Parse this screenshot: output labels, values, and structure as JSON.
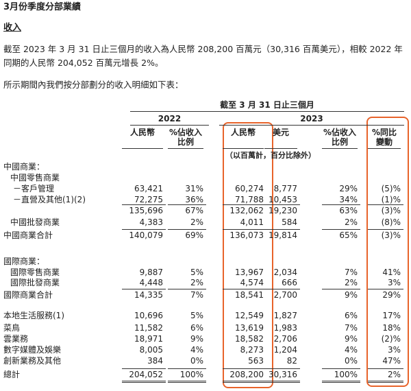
{
  "title": "3月份季度分部業績",
  "section": "收入",
  "paragraphs": [
    "截至 2023 年 3 月 31 日止三個月的收入為人民幣 208,200 百萬元（30,316 百萬美元），相較 2022 年同期的人民幣 204,052 百萬元增長 2%。",
    "所示期間內我們按分部劃分的收入明細如下表："
  ],
  "table": {
    "header": {
      "title": "截至 3 月 31 日止三個月",
      "years": [
        "2022",
        "2023"
      ],
      "columns": [
        "人民幣",
        "%佔收入比例",
        "人民幣",
        "美元",
        "%佔收入比例",
        "%同比變動"
      ],
      "unit_note": "（以百萬計，百分比除外）"
    },
    "rows": [
      {
        "label": "中國商業："
      },
      {
        "label": "中國零售商業"
      },
      {
        "label": "－客戶管理",
        "cells": [
          "63,421",
          "31%",
          "60,274",
          "8,777",
          "29%",
          "(5)%"
        ]
      },
      {
        "label": "－直營及其他(1)(2)",
        "cells": [
          "72,275",
          "36%",
          "71,788",
          "10,453",
          "34%",
          "(1)%"
        ]
      },
      {
        "cells": [
          "135,696",
          "67%",
          "132,062",
          "19,230",
          "63%",
          "(3)%"
        ]
      },
      {
        "label": "中國批發商業",
        "cells": [
          "4,383",
          "2%",
          "4,011",
          "584",
          "2%",
          "(8)%"
        ]
      },
      {
        "label": "中國商業合計",
        "cells": [
          "140,079",
          "69%",
          "136,073",
          "19,814",
          "65%",
          "(3)%"
        ]
      },
      {
        "label": "國際商業："
      },
      {
        "label": "國際零售商業",
        "cells": [
          "9,887",
          "5%",
          "13,967",
          "2,034",
          "7%",
          "41%"
        ]
      },
      {
        "label": "國際批發商業",
        "cells": [
          "4,448",
          "2%",
          "4,574",
          "666",
          "2%",
          "3%"
        ]
      },
      {
        "label": "國際商業合計",
        "cells": [
          "14,335",
          "7%",
          "18,541",
          "2,700",
          "9%",
          "29%"
        ]
      },
      {
        "label": "本地生活服務(1)",
        "cells": [
          "10,696",
          "5%",
          "12,549",
          "1,827",
          "6%",
          "17%"
        ]
      },
      {
        "label": "菜鳥",
        "cells": [
          "11,582",
          "6%",
          "13,619",
          "1,983",
          "7%",
          "18%"
        ]
      },
      {
        "label": "雲業務",
        "cells": [
          "18,971",
          "9%",
          "18,582",
          "2,706",
          "9%",
          "(2)%"
        ]
      },
      {
        "label": "數字媒體及娛樂",
        "cells": [
          "8,005",
          "4%",
          "8,273",
          "1,204",
          "4%",
          "3%"
        ]
      },
      {
        "label": "創新業務及其他",
        "cells": [
          "384",
          "0%",
          "563",
          "82",
          "0%",
          "47%"
        ]
      },
      {
        "label": "總計",
        "cells": [
          "204,052",
          "100%",
          "208,200",
          "30,316",
          "100%",
          "2%"
        ]
      }
    ]
  }
}
